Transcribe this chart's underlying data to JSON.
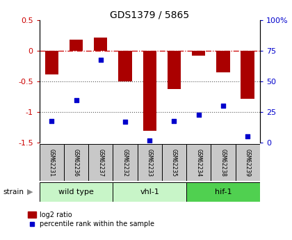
{
  "title": "GDS1379 / 5865",
  "samples": [
    "GSM62231",
    "GSM62236",
    "GSM62237",
    "GSM62232",
    "GSM62233",
    "GSM62235",
    "GSM62234",
    "GSM62238",
    "GSM62239"
  ],
  "log2_ratio": [
    -0.38,
    0.18,
    0.22,
    -0.5,
    -1.3,
    -0.62,
    -0.08,
    -0.35,
    -0.78
  ],
  "percentile_rank": [
    18,
    35,
    68,
    17,
    2,
    18,
    23,
    30,
    5
  ],
  "groups": [
    {
      "label": "wild type",
      "start": 0,
      "end": 3,
      "color": "#c8f5c8"
    },
    {
      "label": "vhl-1",
      "start": 3,
      "end": 6,
      "color": "#c8f5c8"
    },
    {
      "label": "hif-1",
      "start": 6,
      "end": 9,
      "color": "#50d050"
    }
  ],
  "bar_color": "#aa0000",
  "dot_color": "#0000cc",
  "ylim_left": [
    -1.5,
    0.5
  ],
  "ylim_right": [
    0,
    100
  ],
  "yticks_left": [
    -1.5,
    -1.0,
    -0.5,
    0.0,
    0.5
  ],
  "yticks_right": [
    0,
    25,
    50,
    75,
    100
  ],
  "ytick_labels_left": [
    "-1.5",
    "-1",
    "-0.5",
    "0",
    "0.5"
  ],
  "ytick_labels_right": [
    "0",
    "25",
    "50",
    "75",
    "100%"
  ],
  "hline_zero_color": "#cc0000",
  "hline_dotted_color": "#555555",
  "strain_label": "strain",
  "legend_bar_label": "log2 ratio",
  "legend_dot_label": "percentile rank within the sample",
  "tick_label_color_left": "#cc0000",
  "tick_label_color_right": "#0000cc",
  "sample_box_color": "#c8c8c8",
  "bar_width": 0.55
}
